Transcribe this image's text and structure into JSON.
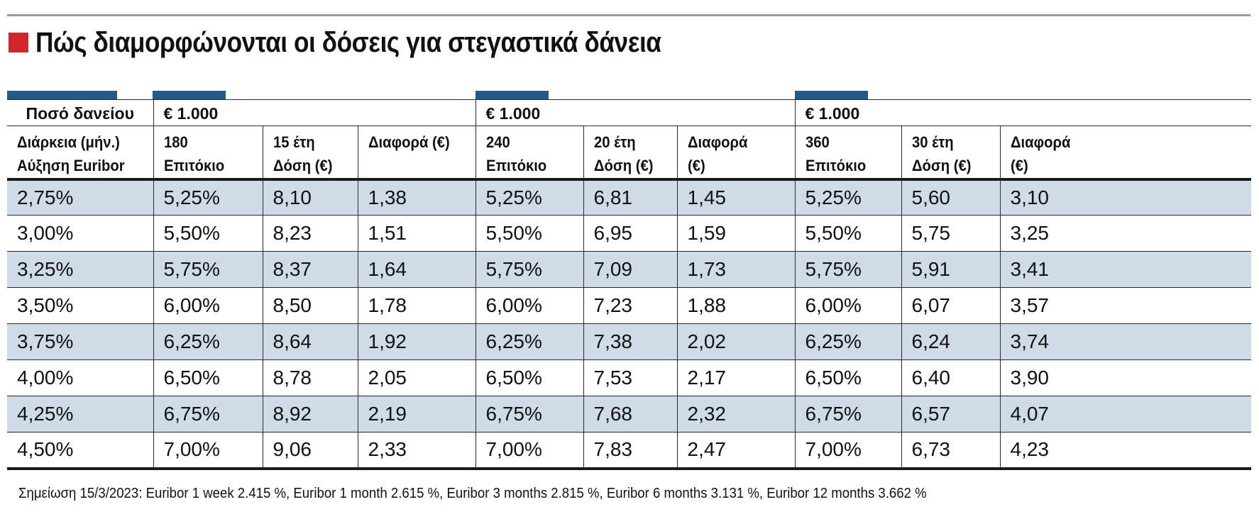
{
  "title": "Πώς διαμορφώνονται οι δόσεις για στεγαστικά δάνεια",
  "colors": {
    "accent_square": "#d2262b",
    "header_bar": "#1f5a8a",
    "row_shade": "#cfdce8"
  },
  "header_row1": {
    "loan_amount_label": "Ποσό δανείου",
    "amount_180": "€ 1.000",
    "amount_240": "€ 1.000",
    "amount_360": "€ 1.000"
  },
  "header_row2": {
    "duration_label": "Διάρκεια (μήν.)",
    "euribor_label": "Αύξηση Euribor",
    "g180_months": "180",
    "g180_rate": "Επιτόκιο",
    "g180_years": "15 έτη",
    "g180_dose": "Δόση (€)",
    "g180_diff": "Διαφορά (€)",
    "g240_months": "240",
    "g240_rate": "Επιτόκιο",
    "g240_years": "20 έτη",
    "g240_dose": "Δόση (€)",
    "g240_diff_1": "Διαφορά",
    "g240_diff_2": "(€)",
    "g360_months": "360",
    "g360_rate": "Επιτόκιο",
    "g360_years": "30 έτη",
    "g360_dose": "Δόση (€)",
    "g360_diff_1": "Διαφορά",
    "g360_diff_2": "(€)"
  },
  "rows": [
    [
      "2,75%",
      "5,25%",
      "8,10",
      "1,38",
      "5,25%",
      "6,81",
      "1,45",
      "5,25%",
      "5,60",
      "3,10"
    ],
    [
      "3,00%",
      "5,50%",
      "8,23",
      "1,51",
      "5,50%",
      "6,95",
      "1,59",
      "5,50%",
      "5,75",
      "3,25"
    ],
    [
      "3,25%",
      "5,75%",
      "8,37",
      "1,64",
      "5,75%",
      "7,09",
      "1,73",
      "5,75%",
      "5,91",
      "3,41"
    ],
    [
      "3,50%",
      "6,00%",
      "8,50",
      "1,78",
      "6,00%",
      "7,23",
      "1,88",
      "6,00%",
      "6,07",
      "3,57"
    ],
    [
      "3,75%",
      "6,25%",
      "8,64",
      "1,92",
      "6,25%",
      "7,38",
      "2,02",
      "6,25%",
      "6,24",
      "3,74"
    ],
    [
      "4,00%",
      "6,50%",
      "8,78",
      "2,05",
      "6,50%",
      "7,53",
      "2,17",
      "6,50%",
      "6,40",
      "3,90"
    ],
    [
      "4,25%",
      "6,75%",
      "8,92",
      "2,19",
      "6,75%",
      "7,68",
      "2,32",
      "6,75%",
      "6,57",
      "4,07"
    ],
    [
      "4,50%",
      "7,00%",
      "9,06",
      "2,33",
      "7,00%",
      "7,83",
      "2,47",
      "7,00%",
      "6,73",
      "4,23"
    ]
  ],
  "note": "Σημείωση 15/3/2023: Euribor 1 week 2.415 %, Euribor 1 month 2.615 %, Euribor 3 months 2.815 %, Euribor 6 months 3.131 %, Euribor 12 months 3.662 %"
}
